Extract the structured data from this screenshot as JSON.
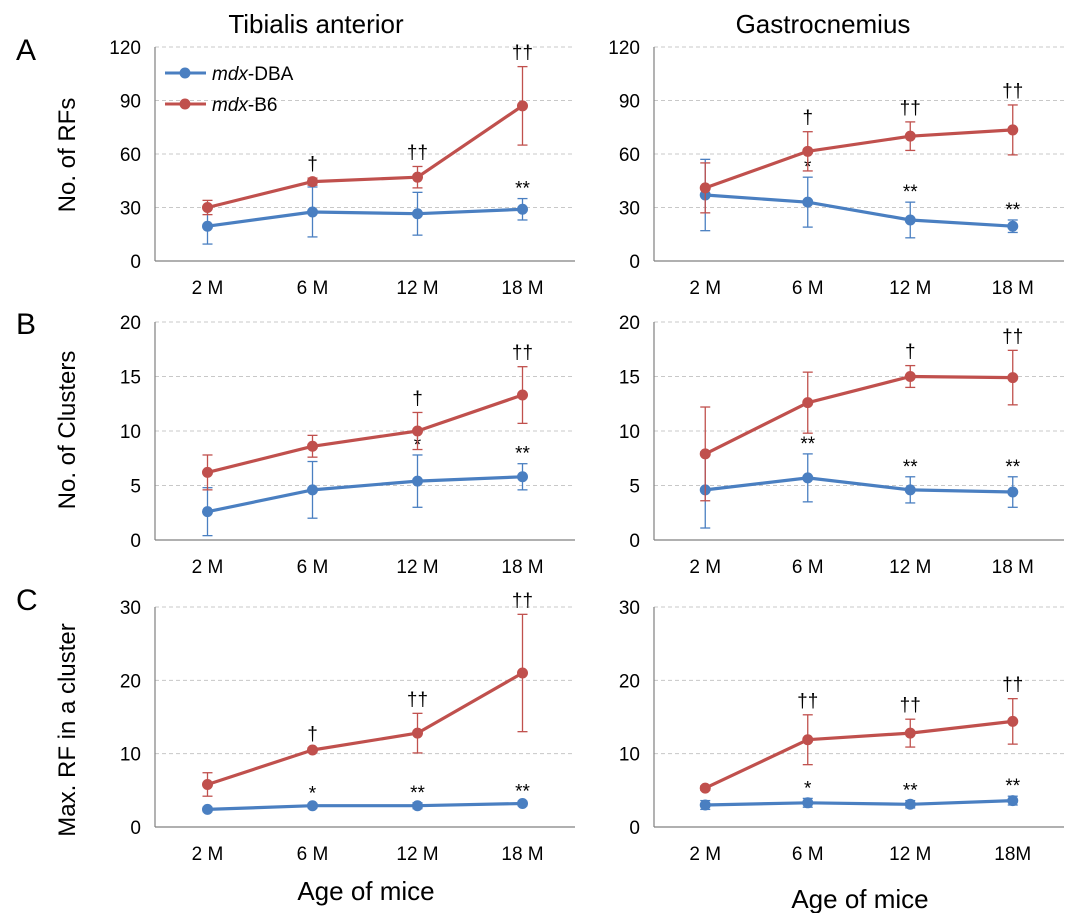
{
  "figure": {
    "column_titles": [
      "Tibialis anterior",
      "Gastrocnemius"
    ],
    "row_letters": [
      "A",
      "B",
      "C"
    ],
    "y_labels": [
      "No. of RFs",
      "No. of Clusters",
      "Max. RF in a cluster"
    ],
    "x_title": "Age of mice",
    "legend": {
      "dba": {
        "italic": "mdx",
        "rest": "-DBA"
      },
      "b6": {
        "italic": "mdx",
        "rest": "-B6"
      }
    },
    "colors": {
      "dba": "#4a7fc1",
      "b6": "#c0504d",
      "grid": "#c8c8c8",
      "axis": "#808080"
    }
  },
  "chart_data": [
    {
      "type": "line",
      "row": 0,
      "col": 0,
      "ylabel": "No. of RFs",
      "column": "Tibialis anterior",
      "categories": [
        "2 M",
        "6 M",
        "12 M",
        "18 M"
      ],
      "ylim": [
        0,
        120
      ],
      "yticks": [
        0,
        30,
        60,
        90,
        120
      ],
      "series": [
        {
          "name": "mdx-DBA",
          "key": "dba",
          "values": [
            19.5,
            27.5,
            26.5,
            29
          ],
          "err_up": [
            10,
            14,
            12,
            6
          ],
          "err_down": [
            10,
            14,
            12,
            6
          ],
          "annotations": [
            "",
            "",
            "",
            "**"
          ]
        },
        {
          "name": "mdx-B6",
          "key": "b6",
          "values": [
            30,
            44.5,
            47,
            87
          ],
          "err_up": [
            4,
            2,
            6,
            22
          ],
          "err_down": [
            4,
            2,
            6,
            22
          ],
          "annotations": [
            "",
            "†",
            "††",
            "††"
          ]
        }
      ]
    },
    {
      "type": "line",
      "row": 0,
      "col": 1,
      "ylabel": "No. of RFs",
      "column": "Gastrocnemius",
      "categories": [
        "2 M",
        "6 M",
        "12 M",
        "18 M"
      ],
      "ylim": [
        0,
        120
      ],
      "yticks": [
        0,
        30,
        60,
        90,
        120
      ],
      "series": [
        {
          "name": "mdx-DBA",
          "key": "dba",
          "values": [
            37,
            33,
            23,
            19.5
          ],
          "err_up": [
            20,
            14,
            10,
            3.5
          ],
          "err_down": [
            20,
            14,
            10,
            3.5
          ],
          "annotations": [
            "",
            "*",
            "**",
            "**"
          ]
        },
        {
          "name": "mdx-B6",
          "key": "b6",
          "values": [
            41,
            61.5,
            70,
            73.5
          ],
          "err_up": [
            14,
            11,
            8,
            14
          ],
          "err_down": [
            14,
            11,
            8,
            14
          ],
          "annotations": [
            "",
            "†",
            "††",
            "††"
          ]
        }
      ]
    },
    {
      "type": "line",
      "row": 1,
      "col": 0,
      "ylabel": "No. of Clusters",
      "column": "Tibialis anterior",
      "categories": [
        "2 M",
        "6 M",
        "12 M",
        "18 M"
      ],
      "ylim": [
        0,
        20
      ],
      "yticks": [
        0,
        5,
        10,
        15,
        20
      ],
      "series": [
        {
          "name": "mdx-DBA",
          "key": "dba",
          "values": [
            2.6,
            4.6,
            5.4,
            5.8
          ],
          "err_up": [
            2.2,
            2.6,
            2.4,
            1.2
          ],
          "err_down": [
            2.2,
            2.6,
            2.4,
            1.2
          ],
          "annotations": [
            "",
            "",
            "*",
            "**"
          ]
        },
        {
          "name": "mdx-B6",
          "key": "b6",
          "values": [
            6.2,
            8.6,
            10.0,
            13.3
          ],
          "err_up": [
            1.6,
            1.0,
            1.7,
            2.6
          ],
          "err_down": [
            1.6,
            1.0,
            1.7,
            2.6
          ],
          "annotations": [
            "",
            "",
            "†",
            "††"
          ]
        }
      ]
    },
    {
      "type": "line",
      "row": 1,
      "col": 1,
      "ylabel": "No. of Clusters",
      "column": "Gastrocnemius",
      "categories": [
        "2 M",
        "6 M",
        "12 M",
        "18 M"
      ],
      "ylim": [
        0,
        20
      ],
      "yticks": [
        0,
        5,
        10,
        15,
        20
      ],
      "series": [
        {
          "name": "mdx-DBA",
          "key": "dba",
          "values": [
            4.6,
            5.7,
            4.6,
            4.4
          ],
          "err_up": [
            3.5,
            2.2,
            1.2,
            1.4
          ],
          "err_down": [
            3.5,
            2.2,
            1.2,
            1.4
          ],
          "annotations": [
            "",
            "**",
            "**",
            "**"
          ]
        },
        {
          "name": "mdx-B6",
          "key": "b6",
          "values": [
            7.9,
            12.6,
            15.0,
            14.9
          ],
          "err_up": [
            4.3,
            2.8,
            1.0,
            2.5
          ],
          "err_down": [
            4.3,
            2.8,
            1.0,
            2.5
          ],
          "annotations": [
            "",
            "",
            "†",
            "††"
          ]
        }
      ]
    },
    {
      "type": "line",
      "row": 2,
      "col": 0,
      "ylabel": "Max. RF in a cluster",
      "column": "Tibialis anterior",
      "categories": [
        "2 M",
        "6 M",
        "12 M",
        "18 M"
      ],
      "ylim": [
        0,
        30
      ],
      "yticks": [
        0,
        10,
        20,
        30
      ],
      "series": [
        {
          "name": "mdx-DBA",
          "key": "dba",
          "values": [
            2.4,
            2.9,
            2.9,
            3.2
          ],
          "err_up": [
            0.3,
            0.3,
            0.4,
            0.3
          ],
          "err_down": [
            0.3,
            0.3,
            0.4,
            0.3
          ],
          "annotations": [
            "",
            "*",
            "**",
            "**"
          ]
        },
        {
          "name": "mdx-B6",
          "key": "b6",
          "values": [
            5.8,
            10.5,
            12.8,
            21.0
          ],
          "err_up": [
            1.6,
            0.3,
            2.7,
            8.0
          ],
          "err_down": [
            1.6,
            0.3,
            2.7,
            8.0
          ],
          "annotations": [
            "",
            "†",
            "††",
            "††"
          ]
        }
      ]
    },
    {
      "type": "line",
      "row": 2,
      "col": 1,
      "ylabel": "Max. RF in a cluster",
      "column": "Gastrocnemius",
      "categories": [
        "2 M",
        "6 M",
        "12 M",
        "18M"
      ],
      "ylim": [
        0,
        30
      ],
      "yticks": [
        0,
        10,
        20,
        30
      ],
      "series": [
        {
          "name": "mdx-DBA",
          "key": "dba",
          "values": [
            3.0,
            3.3,
            3.1,
            3.6
          ],
          "err_up": [
            0.6,
            0.6,
            0.5,
            0.6
          ],
          "err_down": [
            0.6,
            0.6,
            0.5,
            0.6
          ],
          "annotations": [
            "",
            "*",
            "**",
            "**"
          ]
        },
        {
          "name": "mdx-B6",
          "key": "b6",
          "values": [
            5.3,
            11.9,
            12.8,
            14.4
          ],
          "err_up": [
            0.3,
            3.4,
            1.9,
            3.1
          ],
          "err_down": [
            0.3,
            3.4,
            1.9,
            3.1
          ],
          "annotations": [
            "",
            "††",
            "††",
            "††"
          ]
        }
      ]
    }
  ]
}
